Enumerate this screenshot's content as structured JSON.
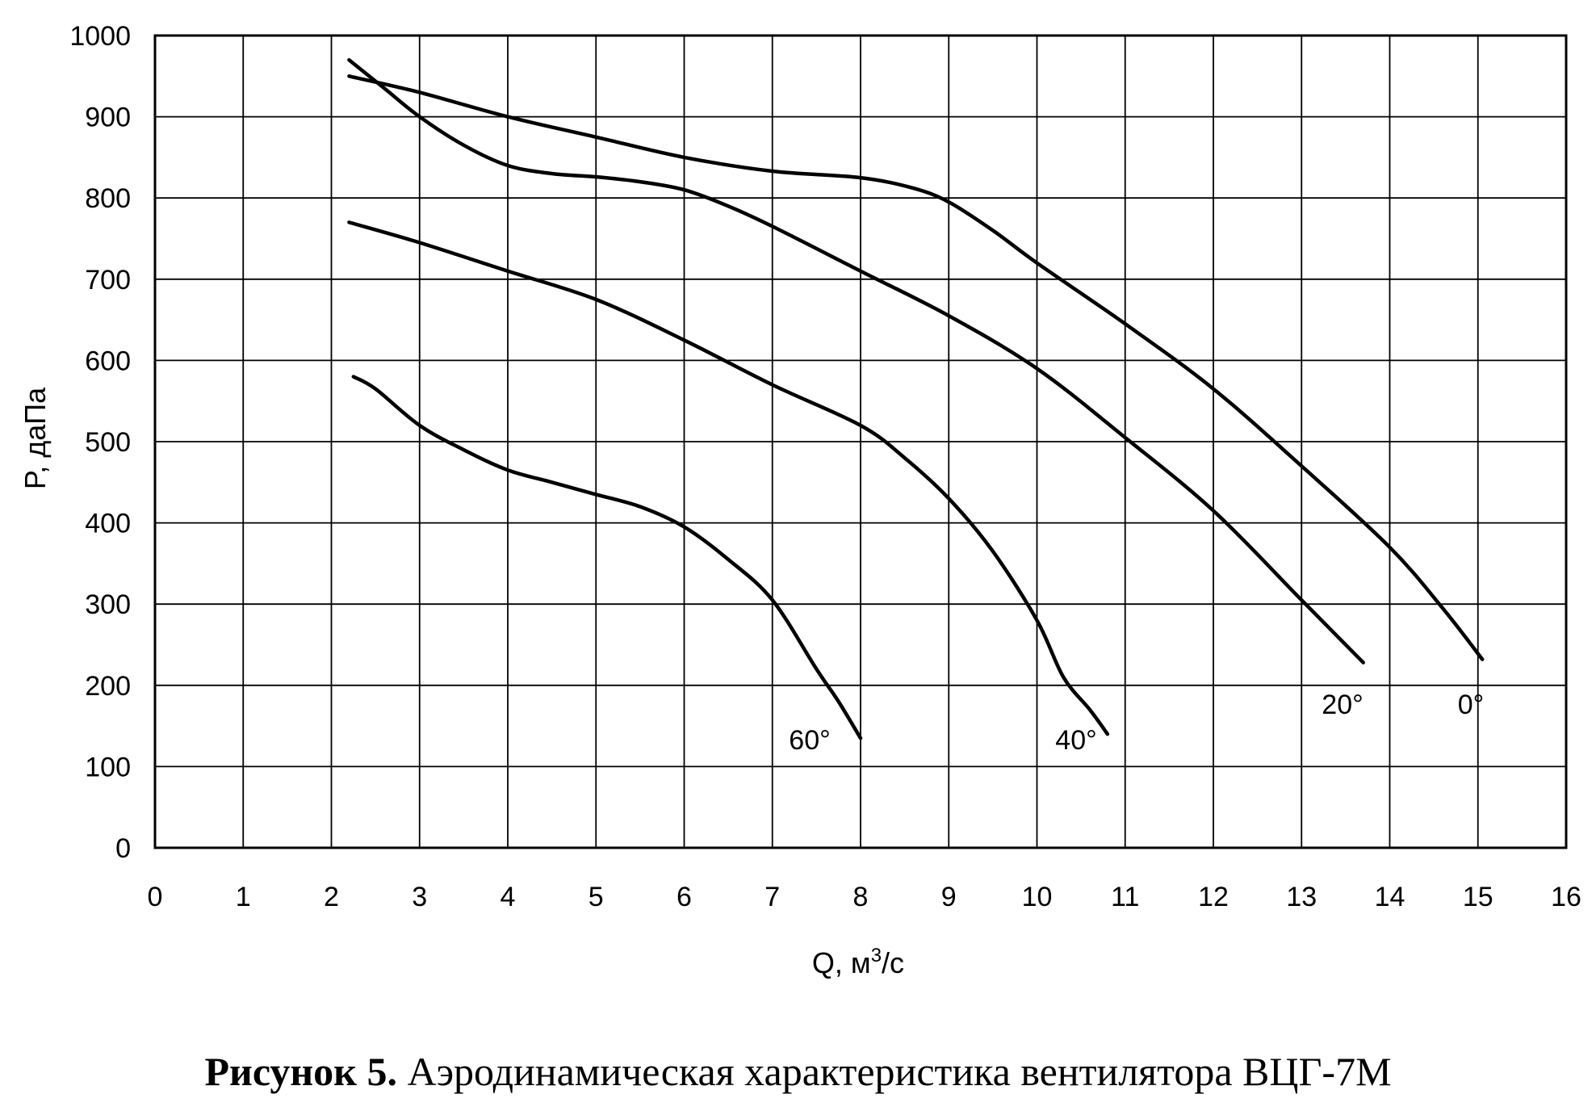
{
  "chart_data": {
    "type": "line",
    "xlabel": "Q, м",
    "xlabel_sup": "3",
    "xlabel_tail": "/с",
    "ylabel": "P, даПа",
    "xlim": [
      0,
      16
    ],
    "ylim": [
      0,
      1000
    ],
    "x_ticks": [
      "0",
      "1",
      "2",
      "3",
      "4",
      "5",
      "6",
      "7",
      "8",
      "9",
      "10",
      "11",
      "12",
      "13",
      "14",
      "15",
      "16"
    ],
    "y_ticks": [
      "0",
      "100",
      "200",
      "300",
      "400",
      "500",
      "600",
      "700",
      "800",
      "900",
      "1000"
    ],
    "grid": true,
    "series": [
      {
        "name": "0°",
        "x": [
          2.2,
          3.0,
          4.0,
          5.0,
          6.0,
          7.0,
          8.0,
          8.6,
          9.0,
          9.5,
          10.0,
          11.0,
          12.0,
          13.0,
          14.0,
          14.6,
          15.05
        ],
        "y": [
          950,
          930,
          900,
          875,
          850,
          833,
          825,
          812,
          795,
          760,
          720,
          645,
          565,
          470,
          370,
          295,
          232
        ]
      },
      {
        "name": "20°",
        "x": [
          2.2,
          2.6,
          3.0,
          3.5,
          4.0,
          4.5,
          5.0,
          5.5,
          6.0,
          6.5,
          7.0,
          8.0,
          9.0,
          10.0,
          11.0,
          12.0,
          13.0,
          13.7
        ],
        "y": [
          970,
          935,
          900,
          865,
          840,
          830,
          826,
          820,
          810,
          790,
          765,
          710,
          655,
          590,
          505,
          415,
          305,
          228
        ]
      },
      {
        "name": "40°",
        "x": [
          2.2,
          3.0,
          4.0,
          5.0,
          6.0,
          7.0,
          8.0,
          8.5,
          9.0,
          9.5,
          10.0,
          10.3,
          10.6,
          10.8
        ],
        "y": [
          770,
          745,
          710,
          675,
          625,
          570,
          520,
          480,
          430,
          365,
          280,
          210,
          170,
          140
        ]
      },
      {
        "name": "60°",
        "x": [
          2.25,
          2.5,
          3.0,
          3.5,
          4.0,
          4.5,
          5.0,
          5.5,
          6.0,
          6.5,
          7.0,
          7.5,
          7.75,
          8.0
        ],
        "y": [
          580,
          565,
          520,
          490,
          465,
          450,
          435,
          420,
          395,
          355,
          305,
          220,
          180,
          135
        ]
      }
    ]
  },
  "series_labels": [
    "0°",
    "20°",
    "40°",
    "60°"
  ],
  "caption": {
    "bold": "Рисунок 5.",
    "text": " Аэродинамическая характеристика вентилятора ВЦГ-7М"
  }
}
